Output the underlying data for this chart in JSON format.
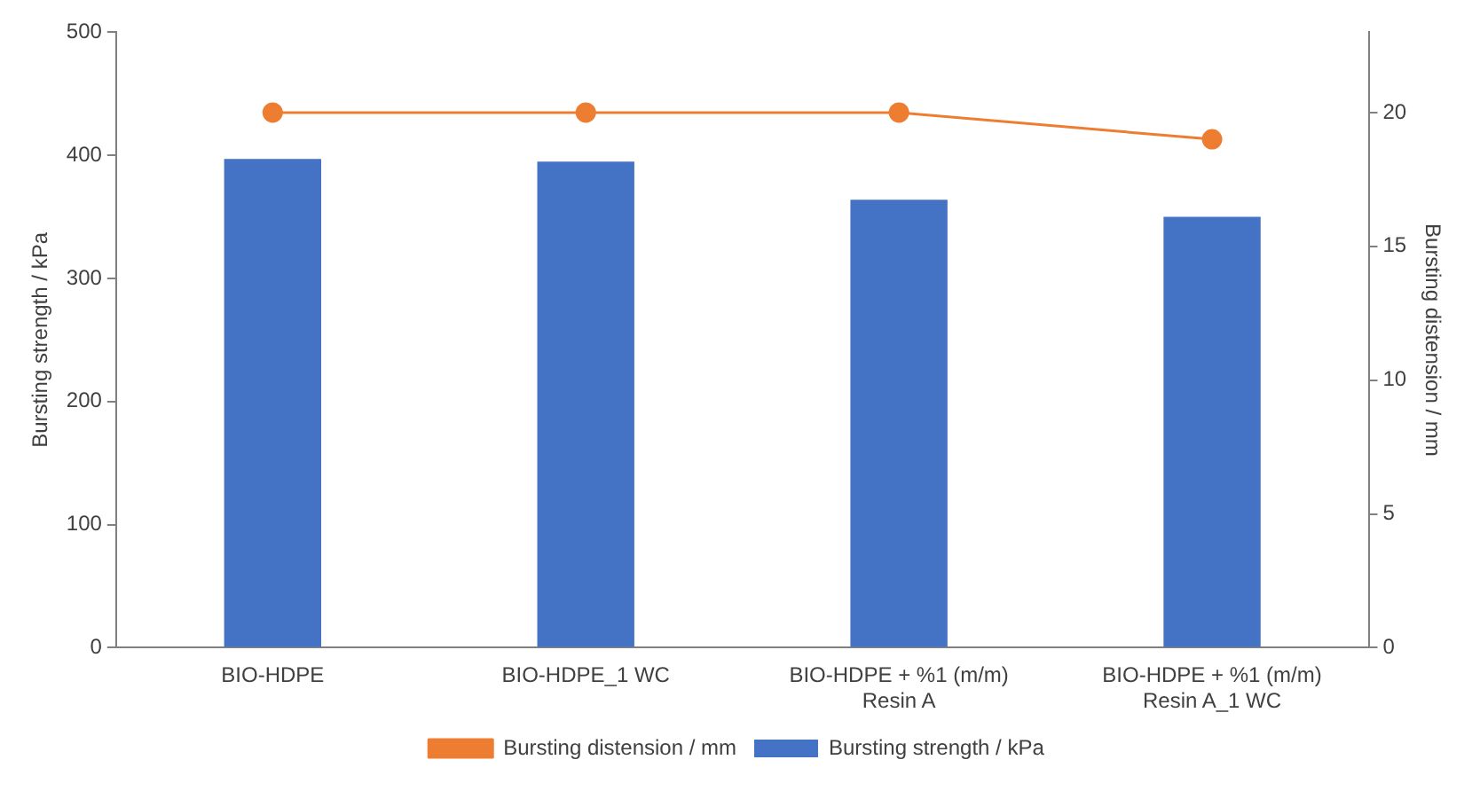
{
  "chart_data": {
    "type": "bar",
    "categories": [
      "BIO-HDPE",
      "BIO-HDPE_1 WC",
      "BIO-HDPE + %1 (m/m) Resin A",
      "BIO-HDPE + %1 (m/m) Resin A_1 WC"
    ],
    "series": [
      {
        "name": "Bursting strength / kPa",
        "color": "#4472c4",
        "values": [
          397,
          395,
          364,
          350
        ]
      },
      {
        "name": "Bursting distension / mm",
        "type": "line",
        "axis": "y2",
        "color": "#ed7d31",
        "values": [
          20,
          20,
          20,
          19
        ]
      }
    ],
    "ylabel": "Bursting strength / kPa",
    "y2label": "Bursting distension / mm",
    "ylim": [
      0,
      500
    ],
    "yticks": [
      0,
      100,
      200,
      300,
      400,
      500
    ],
    "y2lim": [
      0,
      23
    ],
    "y2ticks": [
      0,
      5,
      10,
      15,
      20
    ],
    "grid": false,
    "legend": "bottom",
    "marker": "circle"
  }
}
